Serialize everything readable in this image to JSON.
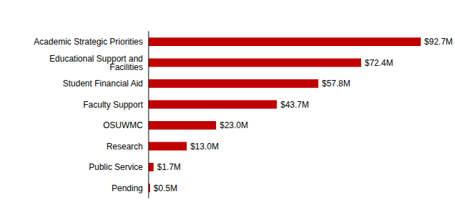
{
  "chart_data": {
    "type": "bar",
    "orientation": "horizontal",
    "categories": [
      "Academic Strategic Priorities",
      "Educational Support and Facilities",
      "Student Financial Aid",
      "Faculty Support",
      "OSUWMC",
      "Research",
      "Public Service",
      "Pending"
    ],
    "values": [
      92.7,
      72.4,
      57.8,
      43.7,
      23.0,
      13.0,
      1.7,
      0.5
    ],
    "value_labels": [
      "$92.7M",
      "$72.4M",
      "$57.8M",
      "$43.7M",
      "$23.0M",
      "$13.0M",
      "$1.7M",
      "$0.5M"
    ],
    "color": "#c00000",
    "xlim": [
      0,
      100
    ],
    "grid": false,
    "data_labels": true,
    "tick_labels": "y"
  }
}
